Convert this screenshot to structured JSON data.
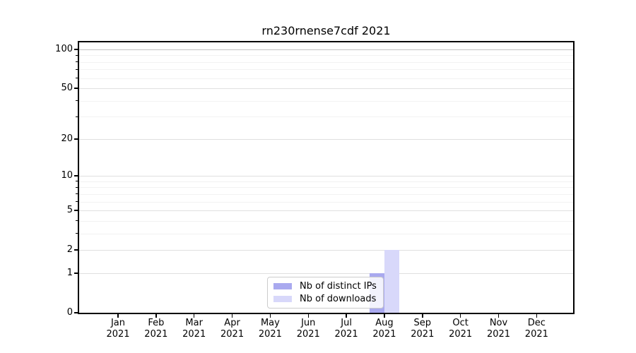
{
  "chart_data": {
    "type": "bar",
    "title": "rn230rnense7cdf 2021",
    "categories": [
      "Jan 2021",
      "Feb 2021",
      "Mar 2021",
      "Apr 2021",
      "May 2021",
      "Jun 2021",
      "Jul 2021",
      "Aug 2021",
      "Sep 2021",
      "Oct 2021",
      "Nov 2021",
      "Dec 2021"
    ],
    "series": [
      {
        "name": "Nb of distinct IPs",
        "color": "#a9a9ef",
        "values": [
          0,
          0,
          0,
          0,
          0,
          0,
          0,
          1,
          0,
          0,
          0,
          0
        ]
      },
      {
        "name": "Nb of downloads",
        "color": "#d8d8fa",
        "values": [
          0,
          0,
          0,
          0,
          0,
          0,
          0,
          2,
          0,
          0,
          0,
          0
        ]
      }
    ],
    "xlabel": "",
    "ylabel": "",
    "yscale": "log1p",
    "ylim": [
      0,
      113
    ],
    "yticks": [
      0,
      1,
      2,
      5,
      10,
      20,
      50,
      100
    ],
    "minor_yticks": [
      3,
      4,
      6,
      7,
      8,
      9,
      30,
      40,
      60,
      70,
      80,
      90
    ],
    "grid": true,
    "legend_position": "lower center"
  }
}
